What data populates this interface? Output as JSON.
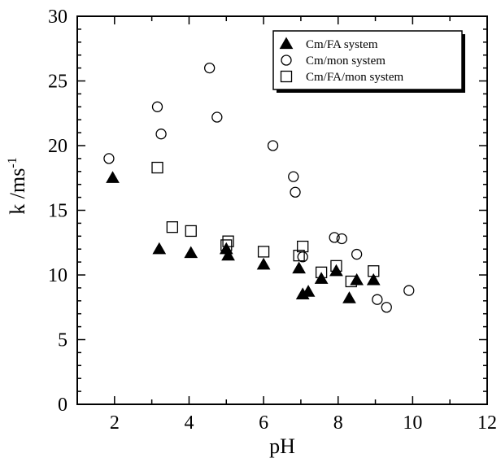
{
  "chart_data": {
    "type": "scatter",
    "title": "",
    "xlabel": "pH",
    "ylabel": "k /ms",
    "ylabel_superscript": "-1",
    "xlim": [
      1,
      12
    ],
    "ylim": [
      0,
      30
    ],
    "xticks": [
      2,
      4,
      6,
      8,
      10,
      12
    ],
    "yticks": [
      0,
      5,
      10,
      15,
      20,
      25,
      30
    ],
    "grid": false,
    "legend_position": "top-right",
    "series": [
      {
        "name": "Cm/FA system",
        "marker": "filled-triangle",
        "color": "#000000",
        "points": [
          {
            "x": 1.95,
            "y": 17.5
          },
          {
            "x": 3.2,
            "y": 12.0
          },
          {
            "x": 4.05,
            "y": 11.7
          },
          {
            "x": 5.0,
            "y": 12.0
          },
          {
            "x": 5.05,
            "y": 11.5
          },
          {
            "x": 6.0,
            "y": 10.8
          },
          {
            "x": 6.95,
            "y": 10.5
          },
          {
            "x": 7.05,
            "y": 8.5
          },
          {
            "x": 7.2,
            "y": 8.7
          },
          {
            "x": 7.55,
            "y": 9.7
          },
          {
            "x": 7.95,
            "y": 10.3
          },
          {
            "x": 8.3,
            "y": 8.2
          },
          {
            "x": 8.5,
            "y": 9.6
          },
          {
            "x": 8.95,
            "y": 9.6
          }
        ]
      },
      {
        "name": "Cm/mon system",
        "marker": "open-circle",
        "color": "#000000",
        "points": [
          {
            "x": 1.85,
            "y": 19.0
          },
          {
            "x": 3.15,
            "y": 23.0
          },
          {
            "x": 3.25,
            "y": 20.9
          },
          {
            "x": 4.55,
            "y": 26.0
          },
          {
            "x": 4.75,
            "y": 22.2
          },
          {
            "x": 6.25,
            "y": 20.0
          },
          {
            "x": 6.8,
            "y": 17.6
          },
          {
            "x": 6.85,
            "y": 16.4
          },
          {
            "x": 7.05,
            "y": 11.4
          },
          {
            "x": 7.9,
            "y": 12.9
          },
          {
            "x": 8.1,
            "y": 12.8
          },
          {
            "x": 8.5,
            "y": 11.6
          },
          {
            "x": 9.05,
            "y": 8.1
          },
          {
            "x": 9.3,
            "y": 7.5
          },
          {
            "x": 9.9,
            "y": 8.8
          }
        ]
      },
      {
        "name": "Cm/FA/mon system",
        "marker": "open-square",
        "color": "#000000",
        "points": [
          {
            "x": 3.15,
            "y": 18.3
          },
          {
            "x": 3.55,
            "y": 13.7
          },
          {
            "x": 4.05,
            "y": 13.4
          },
          {
            "x": 5.0,
            "y": 12.3
          },
          {
            "x": 5.05,
            "y": 12.6
          },
          {
            "x": 6.0,
            "y": 11.8
          },
          {
            "x": 6.95,
            "y": 11.5
          },
          {
            "x": 7.05,
            "y": 12.2
          },
          {
            "x": 7.55,
            "y": 10.2
          },
          {
            "x": 7.95,
            "y": 10.7
          },
          {
            "x": 8.35,
            "y": 9.5
          },
          {
            "x": 8.95,
            "y": 10.3
          }
        ]
      }
    ]
  }
}
